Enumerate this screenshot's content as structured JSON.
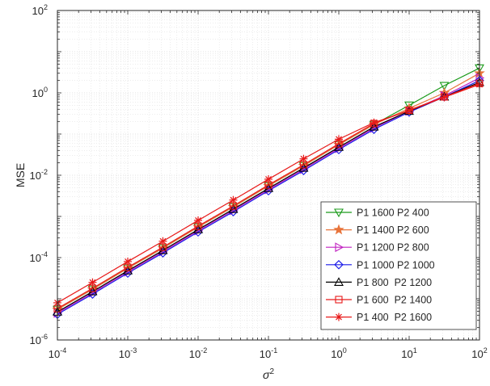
{
  "chart_data": {
    "type": "line",
    "xscale": "log",
    "yscale": "log",
    "xlim": [
      0.0001,
      100
    ],
    "ylim": [
      1e-06,
      100
    ],
    "grid": true,
    "minor_grid": true,
    "xlabel_base": "σ",
    "xlabel_sup": "2",
    "ylabel": "MSE",
    "legend_position": "lower-right",
    "x": [
      0.0001,
      0.000316,
      0.001,
      0.00316,
      0.01,
      0.0316,
      0.1,
      0.316,
      1,
      3.16,
      10,
      31.6,
      100
    ],
    "xticks": [
      {
        "base": "10",
        "exp": "-4"
      },
      {
        "base": "10",
        "exp": "-3"
      },
      {
        "base": "10",
        "exp": "-2"
      },
      {
        "base": "10",
        "exp": "-1"
      },
      {
        "base": "10",
        "exp": "0"
      },
      {
        "base": "10",
        "exp": "1"
      },
      {
        "base": "10",
        "exp": "2"
      }
    ],
    "yticks": [
      {
        "base": "10",
        "exp": "-6"
      },
      {
        "base": "10",
        "exp": "-4"
      },
      {
        "base": "10",
        "exp": "-2"
      },
      {
        "base": "10",
        "exp": "0"
      },
      {
        "base": "10",
        "exp": "2"
      }
    ],
    "series": [
      {
        "name": "P1 1600 P2 400",
        "color": "#1a9a1a",
        "marker": "triangle-down",
        "values": [
          5.5e-06,
          1.7e-05,
          5.5e-05,
          0.00017,
          0.00055,
          0.0017,
          0.0055,
          0.017,
          0.055,
          0.17,
          0.5,
          1.5,
          4.0
        ]
      },
      {
        "name": "P1 1400 P2 600",
        "color": "#e8743b",
        "marker": "star-5",
        "values": [
          5.5e-06,
          1.7e-05,
          5.5e-05,
          0.00017,
          0.00055,
          0.0017,
          0.0055,
          0.017,
          0.055,
          0.17,
          0.42,
          1.0,
          3.0
        ]
      },
      {
        "name": "P1 1200 P2 800",
        "color": "#c020c0",
        "marker": "triangle-right",
        "values": [
          4.5e-06,
          1.4e-05,
          4.5e-05,
          0.00014,
          0.00045,
          0.0014,
          0.0045,
          0.014,
          0.045,
          0.14,
          0.36,
          0.85,
          2.3
        ]
      },
      {
        "name": "P1 1000 P2 1000",
        "color": "#1a1ae8",
        "marker": "diamond",
        "values": [
          4.2e-06,
          1.3e-05,
          4.2e-05,
          0.00013,
          0.00042,
          0.0013,
          0.0042,
          0.013,
          0.042,
          0.13,
          0.34,
          0.8,
          2.0
        ]
      },
      {
        "name": "P1 800  P2 1200",
        "color": "#000000",
        "marker": "triangle-up",
        "values": [
          4.8e-06,
          1.5e-05,
          4.8e-05,
          0.00015,
          0.00048,
          0.0015,
          0.0048,
          0.015,
          0.048,
          0.15,
          0.36,
          0.8,
          1.8
        ]
      },
      {
        "name": "P1 600  P2 1400",
        "color": "#e81a1a",
        "marker": "square",
        "values": [
          5.8e-06,
          1.8e-05,
          5.8e-05,
          0.00018,
          0.00058,
          0.0018,
          0.0058,
          0.018,
          0.058,
          0.18,
          0.38,
          0.8,
          1.7
        ]
      },
      {
        "name": "P1 400  P2 1600",
        "color": "#e81a1a",
        "marker": "asterisk",
        "values": [
          8e-06,
          2.5e-05,
          8e-05,
          0.00025,
          0.0008,
          0.0025,
          0.008,
          0.025,
          0.075,
          0.19,
          0.37,
          0.78,
          1.6
        ]
      }
    ]
  }
}
